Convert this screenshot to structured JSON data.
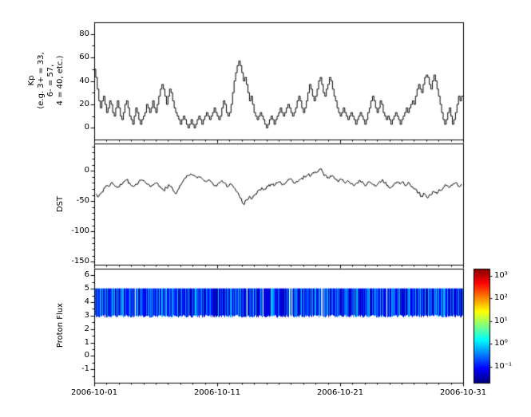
{
  "chart_data": [
    {
      "type": "line",
      "name": "kp",
      "ylabel": "Kp (e.g. 3+ = 33, 6- = 57, 4 = 40, etc.)",
      "ylabel_lines": [
        "Kp",
        "(e.g. 3+ = 33,",
        "6- = 57,",
        "4 = 40, etc.)"
      ],
      "line_style": "steps",
      "color": "#000000",
      "x_start": "2006-10-01",
      "x_end": "2006-10-31",
      "points_per_day": 8,
      "ylim": [
        -10,
        90
      ],
      "yticks": [
        0,
        20,
        40,
        60,
        80
      ],
      "values": [
        50,
        43,
        33,
        23,
        17,
        23,
        27,
        20,
        13,
        17,
        23,
        20,
        13,
        10,
        17,
        23,
        17,
        10,
        7,
        13,
        20,
        23,
        17,
        10,
        7,
        3,
        10,
        17,
        13,
        7,
        3,
        7,
        10,
        13,
        20,
        17,
        13,
        17,
        23,
        17,
        13,
        20,
        27,
        33,
        37,
        33,
        27,
        20,
        27,
        33,
        30,
        23,
        17,
        13,
        10,
        7,
        3,
        7,
        10,
        7,
        3,
        0,
        3,
        7,
        3,
        0,
        3,
        7,
        10,
        7,
        3,
        7,
        10,
        13,
        10,
        7,
        10,
        13,
        17,
        13,
        10,
        7,
        10,
        17,
        23,
        20,
        13,
        10,
        13,
        20,
        30,
        40,
        47,
        53,
        57,
        53,
        47,
        40,
        43,
        37,
        30,
        23,
        27,
        20,
        13,
        10,
        7,
        10,
        13,
        10,
        7,
        3,
        0,
        3,
        7,
        10,
        7,
        3,
        7,
        10,
        13,
        17,
        13,
        10,
        13,
        17,
        20,
        17,
        13,
        10,
        13,
        17,
        23,
        27,
        23,
        17,
        13,
        17,
        23,
        30,
        37,
        33,
        27,
        23,
        27,
        33,
        40,
        43,
        37,
        30,
        27,
        33,
        37,
        43,
        40,
        33,
        27,
        23,
        17,
        13,
        10,
        13,
        17,
        13,
        10,
        7,
        10,
        13,
        10,
        7,
        3,
        7,
        10,
        13,
        10,
        7,
        3,
        7,
        13,
        17,
        23,
        27,
        23,
        17,
        13,
        17,
        23,
        20,
        13,
        10,
        7,
        10,
        7,
        3,
        7,
        10,
        13,
        10,
        7,
        3,
        7,
        10,
        13,
        17,
        13,
        17,
        20,
        23,
        20,
        27,
        33,
        37,
        33,
        30,
        37,
        43,
        45,
        43,
        37,
        33,
        40,
        45,
        40,
        33,
        27,
        20,
        13,
        7,
        3,
        7,
        13,
        17,
        10,
        3,
        7,
        13,
        20,
        27,
        23,
        27
      ]
    },
    {
      "type": "line",
      "name": "dst",
      "ylabel": "DST",
      "color": "#000000",
      "x_start": "2006-10-01",
      "x_end": "2006-10-31",
      "points_per_day": 4,
      "ylim": [
        -155,
        45
      ],
      "yticks": [
        0,
        -50,
        -100,
        -150
      ],
      "values": [
        -38,
        -42,
        -35,
        -28,
        -25,
        -20,
        -24,
        -28,
        -22,
        -18,
        -15,
        -20,
        -25,
        -22,
        -18,
        -15,
        -18,
        -22,
        -26,
        -22,
        -20,
        -26,
        -32,
        -28,
        -24,
        -30,
        -38,
        -30,
        -20,
        -12,
        -8,
        -5,
        -8,
        -12,
        -10,
        -15,
        -18,
        -15,
        -20,
        -24,
        -20,
        -16,
        -20,
        -26,
        -22,
        -28,
        -35,
        -45,
        -55,
        -48,
        -42,
        -45,
        -38,
        -32,
        -28,
        -30,
        -26,
        -22,
        -25,
        -20,
        -18,
        -22,
        -18,
        -14,
        -16,
        -20,
        -16,
        -12,
        -10,
        -6,
        -8,
        -4,
        -2,
        3,
        -4,
        -8,
        -12,
        -8,
        -14,
        -18,
        -15,
        -20,
        -16,
        -22,
        -25,
        -20,
        -16,
        -20,
        -24,
        -18,
        -22,
        -26,
        -20,
        -16,
        -20,
        -24,
        -28,
        -22,
        -18,
        -22,
        -18,
        -24,
        -20,
        -26,
        -30,
        -36,
        -42,
        -38,
        -45,
        -40,
        -34,
        -38,
        -32,
        -28,
        -24,
        -28,
        -24,
        -20,
        -26,
        -22
      ]
    },
    {
      "type": "heatmap",
      "name": "proton",
      "ylabel": "Proton Flux",
      "x_start": "2006-10-01",
      "x_end": "2006-10-31",
      "ylim": [
        -2,
        6.5
      ],
      "yticks": [
        -1,
        0,
        1,
        2,
        3,
        4,
        5,
        6
      ],
      "band": {
        "y_min": 2.9,
        "y_max": 5.0,
        "flux_exp_range": [
          -1.5,
          0.0
        ]
      },
      "colorbar": {
        "scale": "log",
        "exp_range": [
          -1.7,
          3.3
        ],
        "tick_labels": [
          "10³",
          "10²",
          "10¹",
          "10⁰",
          "10⁻¹"
        ],
        "tick_exps": [
          3,
          2,
          1,
          0,
          -1
        ],
        "colormap": "jet",
        "stops": [
          {
            "pos": 0,
            "color": "#000080"
          },
          {
            "pos": 0.125,
            "color": "#0000ff"
          },
          {
            "pos": 0.375,
            "color": "#00ffff"
          },
          {
            "pos": 0.625,
            "color": "#ffff00"
          },
          {
            "pos": 0.875,
            "color": "#ff0000"
          },
          {
            "pos": 1,
            "color": "#800000"
          }
        ]
      }
    }
  ],
  "xaxis": {
    "tick_labels": [
      "2006-10-01",
      "2006-10-11",
      "2006-10-21",
      "2006-10-31"
    ],
    "tick_days": [
      0,
      10,
      20,
      30
    ],
    "minor_tick_every_days": 1,
    "total_days": 30
  },
  "colors": {
    "axis": "#000000",
    "background": "#ffffff",
    "line": "#000000"
  }
}
